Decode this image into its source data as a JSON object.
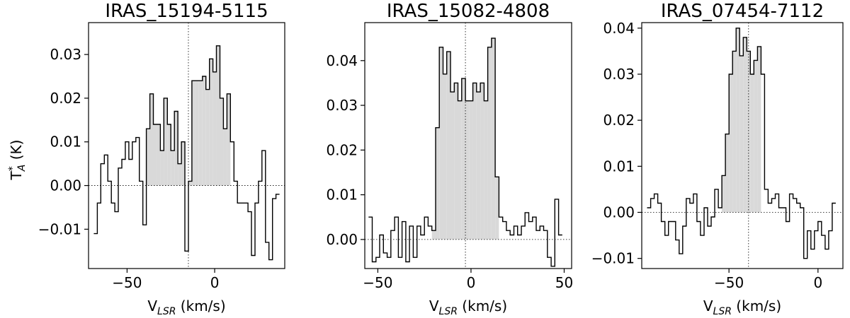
{
  "chart_data": [
    {
      "type": "line",
      "style": "step",
      "title": "IRAS_15194-5115",
      "xlabel_main": "V",
      "xlabel_sub": "LSR",
      "xlabel_units": "(km/s)",
      "ylabel_main": "T",
      "ylabel_sup": "*",
      "ylabel_sub": "A",
      "ylabel_units": "(K)",
      "xlim": [
        -72,
        40
      ],
      "ylim": [
        -0.019,
        0.0373
      ],
      "xticks": [
        -50,
        0
      ],
      "xtick_labels": [
        "−50",
        "0"
      ],
      "yticks": [
        -0.01,
        0.0,
        0.01,
        0.02,
        0.03
      ],
      "ytick_labels": [
        "−0.01",
        "0.00",
        "0.01",
        "0.02",
        "0.03"
      ],
      "vsys": -15,
      "shade_ranges": [
        [
          -38,
          -15
        ],
        [
          -14,
          10
        ]
      ],
      "x": [
        -68,
        -66,
        -64,
        -62,
        -60,
        -58,
        -56,
        -54,
        -52,
        -50,
        -48,
        -46,
        -44,
        -42,
        -40,
        -38,
        -36,
        -34,
        -32,
        -30,
        -28,
        -26,
        -24,
        -22,
        -20,
        -18,
        -16,
        -14,
        -12,
        -10,
        -8,
        -6,
        -4,
        -2,
        0,
        2,
        4,
        6,
        8,
        10,
        12,
        14,
        16,
        18,
        20,
        22,
        24,
        26,
        28,
        30,
        32,
        34,
        36
      ],
      "y": [
        -0.011,
        -0.004,
        0.005,
        0.007,
        0.001,
        -0.004,
        -0.006,
        0.004,
        0.006,
        0.01,
        0.006,
        0.01,
        0.011,
        0.001,
        -0.009,
        0.013,
        0.021,
        0.014,
        0.014,
        0.008,
        0.02,
        0.014,
        0.008,
        0.017,
        0.005,
        0.01,
        -0.015,
        0.001,
        0.024,
        0.024,
        0.024,
        0.025,
        0.022,
        0.029,
        0.026,
        0.032,
        0.02,
        0.013,
        0.021,
        0.01,
        0.001,
        -0.004,
        -0.004,
        -0.004,
        -0.006,
        -0.016,
        -0.004,
        0.001,
        0.008,
        -0.013,
        -0.017,
        -0.003,
        -0.002
      ]
    },
    {
      "type": "line",
      "style": "step",
      "title": "IRAS_15082-4808",
      "xlabel_main": "V",
      "xlabel_sub": "LSR",
      "xlabel_units": "(km/s)",
      "xlim": [
        -57,
        54
      ],
      "ylim": [
        -0.0065,
        0.0485
      ],
      "xticks": [
        -50,
        0,
        50
      ],
      "xtick_labels": [
        "−50",
        "0",
        "50"
      ],
      "yticks": [
        0.0,
        0.01,
        0.02,
        0.03,
        0.04
      ],
      "ytick_labels": [
        "0.00",
        "0.01",
        "0.02",
        "0.03",
        "0.04"
      ],
      "vsys": -3,
      "shade_ranges": [
        [
          -20,
          15
        ]
      ],
      "x": [
        -54,
        -52,
        -50,
        -48,
        -46,
        -44,
        -42,
        -40,
        -38,
        -36,
        -34,
        -32,
        -30,
        -28,
        -26,
        -24,
        -22,
        -20,
        -18,
        -16,
        -14,
        -12,
        -10,
        -8,
        -6,
        -4,
        -2,
        0,
        2,
        4,
        6,
        8,
        10,
        12,
        14,
        16,
        18,
        20,
        22,
        24,
        26,
        28,
        30,
        32,
        34,
        36,
        38,
        40,
        42,
        44,
        46,
        48
      ],
      "y": [
        0.005,
        -0.005,
        -0.004,
        0.001,
        -0.003,
        -0.004,
        0.002,
        0.005,
        -0.004,
        0.004,
        -0.005,
        0.003,
        -0.004,
        0.003,
        0.001,
        0.005,
        0.003,
        0.002,
        0.025,
        0.043,
        0.037,
        0.042,
        0.033,
        0.035,
        0.031,
        0.036,
        0.031,
        0.031,
        0.035,
        0.033,
        0.035,
        0.031,
        0.043,
        0.045,
        0.014,
        0.005,
        0.004,
        0.002,
        0.001,
        0.003,
        0.001,
        0.003,
        0.006,
        0.004,
        0.005,
        0.002,
        0.003,
        0.002,
        -0.004,
        -0.006,
        0.009,
        0.001
      ]
    },
    {
      "type": "line",
      "style": "step",
      "title": "IRAS_07454-7112",
      "xlabel_main": "V",
      "xlabel_sub": "LSR",
      "xlabel_units": "(km/s)",
      "xlim": [
        -99,
        14
      ],
      "ylim": [
        -0.0122,
        0.0412
      ],
      "xticks": [
        -50,
        0
      ],
      "xtick_labels": [
        "−50",
        "0"
      ],
      "yticks": [
        -0.01,
        0.0,
        0.01,
        0.02,
        0.03,
        0.04
      ],
      "ytick_labels": [
        "−0.01",
        "0.00",
        "0.01",
        "0.02",
        "0.03",
        "0.04"
      ],
      "vsys": -39,
      "shade_ranges": [
        [
          -54,
          -31
        ]
      ],
      "x": [
        -95,
        -93,
        -91,
        -89,
        -87,
        -85,
        -83,
        -81,
        -79,
        -77,
        -75,
        -73,
        -71,
        -69,
        -67,
        -65,
        -63,
        -61,
        -59,
        -57,
        -55,
        -53,
        -51,
        -49,
        -47,
        -45,
        -43,
        -41,
        -39,
        -37,
        -35,
        -33,
        -31,
        -29,
        -27,
        -25,
        -23,
        -21,
        -19,
        -17,
        -15,
        -13,
        -11,
        -9,
        -7,
        -5,
        -3,
        -1,
        1,
        3,
        5,
        7,
        9
      ],
      "y": [
        0.001,
        0.003,
        0.004,
        0.002,
        -0.002,
        -0.005,
        -0.002,
        -0.002,
        -0.006,
        -0.009,
        -0.003,
        0.003,
        0.002,
        0.004,
        -0.002,
        -0.005,
        0.001,
        -0.003,
        -0.001,
        0.005,
        0.001,
        0.008,
        0.017,
        0.03,
        0.035,
        0.04,
        0.034,
        0.038,
        0.035,
        0.03,
        0.033,
        0.036,
        0.03,
        0.005,
        0.002,
        0.003,
        0.004,
        0.001,
        0.001,
        -0.002,
        0.004,
        0.003,
        0.002,
        0.001,
        -0.01,
        -0.004,
        -0.008,
        -0.004,
        -0.002,
        -0.005,
        -0.008,
        -0.004,
        0.002
      ]
    }
  ]
}
